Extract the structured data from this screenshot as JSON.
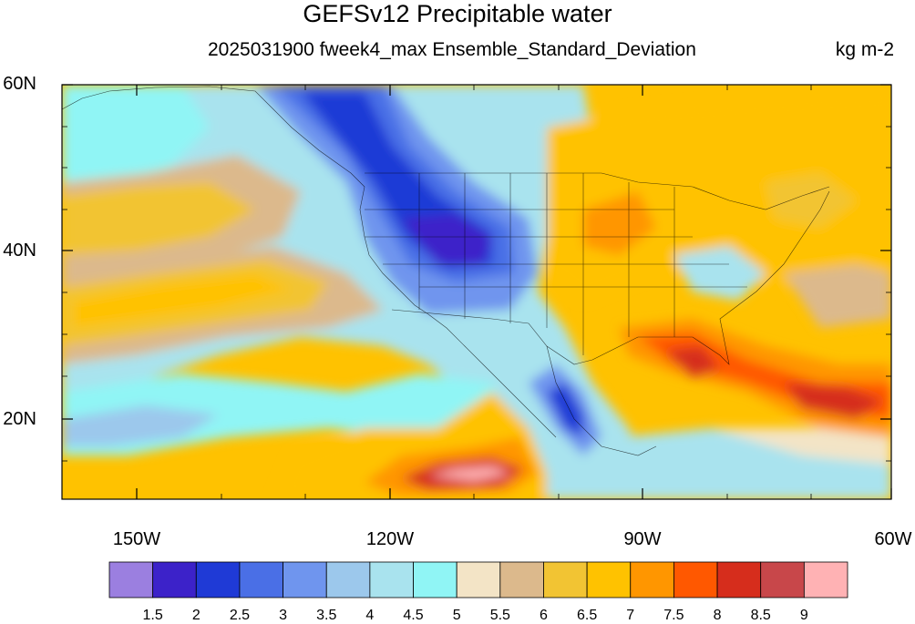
{
  "title": "GEFSv12 Precipitable water",
  "subtitle": "2025031900 fweek4_max Ensemble_Standard_Deviation",
  "units": "kg m-2",
  "lat_labels": [
    "60N",
    "40N",
    "20N"
  ],
  "lon_labels": [
    "150W",
    "120W",
    "90W",
    "60W"
  ],
  "colorbar": {
    "colors": [
      "#9b7fe0",
      "#3c22c9",
      "#1f3ad6",
      "#4a6fe6",
      "#6f95ee",
      "#9cc8ec",
      "#a9e3ee",
      "#90f5f5",
      "#f3e4c6",
      "#dcb98c",
      "#f2c433",
      "#ffc200",
      "#ff9600",
      "#ff5800",
      "#d62d1c",
      "#c8474a",
      "#ffb2b4"
    ],
    "labels": [
      "1.5",
      "2",
      "2.5",
      "3",
      "3.5",
      "4",
      "4.5",
      "5",
      "5.5",
      "6",
      "6.5",
      "7",
      "7.5",
      "8",
      "8.5",
      "9"
    ]
  }
}
